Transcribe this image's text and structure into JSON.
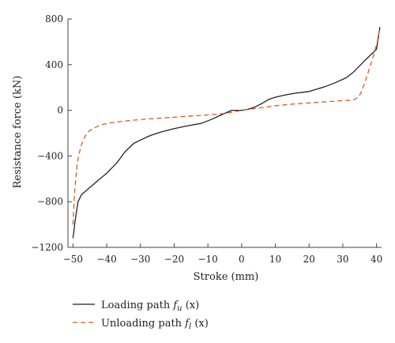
{
  "chart_data": {
    "type": "line",
    "xlabel": "Stroke (mm)",
    "ylabel": "Resistance force (kN)",
    "xlim": [
      -51.5,
      41.5
    ],
    "ylim": [
      -1200,
      800
    ],
    "x_ticks": [
      -50,
      -40,
      -30,
      -20,
      -10,
      0,
      10,
      20,
      30,
      40
    ],
    "y_ticks": [
      800,
      400,
      0,
      -400,
      -800,
      -1200
    ],
    "x_tick_labels": [
      "−50",
      "−40",
      "−30",
      "−20",
      "−10",
      "0",
      "10",
      "20",
      "30",
      "40"
    ],
    "y_tick_labels": [
      "800",
      "400",
      "0",
      "−400",
      "−800",
      "−1200"
    ],
    "legend_position": "bottom",
    "series": [
      {
        "name": "Loading path f_u (x)",
        "legend_main": "Loading path ",
        "legend_func": "f",
        "legend_sub": "u",
        "legend_arg": " (x)",
        "color": "#222222",
        "style": "solid",
        "x": [
          -50,
          -49.3,
          -48.5,
          -47.5,
          -46,
          -44,
          -42,
          -40,
          -37,
          -34.5,
          -32,
          -30,
          -27,
          -24,
          -20,
          -16,
          -12,
          -9,
          -6,
          -3,
          -1,
          0,
          2,
          4,
          6,
          8,
          10,
          13,
          16,
          20,
          25,
          28,
          31,
          33,
          35,
          37,
          39,
          40,
          41
        ],
        "y": [
          -1120,
          -950,
          -800,
          -740,
          -700,
          -650,
          -600,
          -550,
          -460,
          -360,
          -290,
          -260,
          -220,
          -190,
          -160,
          -135,
          -115,
          -80,
          -40,
          0,
          0,
          0,
          10,
          30,
          60,
          95,
          115,
          135,
          150,
          165,
          210,
          245,
          285,
          330,
          390,
          450,
          505,
          535,
          730
        ]
      },
      {
        "name": "Unloading path f_l (x)",
        "legend_main": "Unloading path ",
        "legend_func": "f",
        "legend_sub": "l",
        "legend_arg": " (x)",
        "color": "#e0581c",
        "style": "dashed",
        "x": [
          -50,
          -49.6,
          -49.2,
          -48.8,
          -48.2,
          -47.5,
          -46.5,
          -45.2,
          -43.5,
          -41.5,
          -39,
          -35,
          -30,
          -25,
          -20,
          -15,
          -10,
          -5,
          -2,
          0,
          5,
          10,
          15,
          20,
          25,
          30,
          33,
          34.5,
          35.5,
          36.5,
          37.5,
          38.5,
          39.5,
          40.3,
          41
        ],
        "y": [
          -1000,
          -750,
          -600,
          -480,
          -380,
          -300,
          -230,
          -180,
          -150,
          -125,
          -110,
          -95,
          -80,
          -70,
          -60,
          -50,
          -40,
          -28,
          -12,
          0,
          20,
          40,
          55,
          65,
          75,
          85,
          90,
          110,
          160,
          240,
          330,
          420,
          520,
          610,
          730
        ]
      }
    ]
  }
}
